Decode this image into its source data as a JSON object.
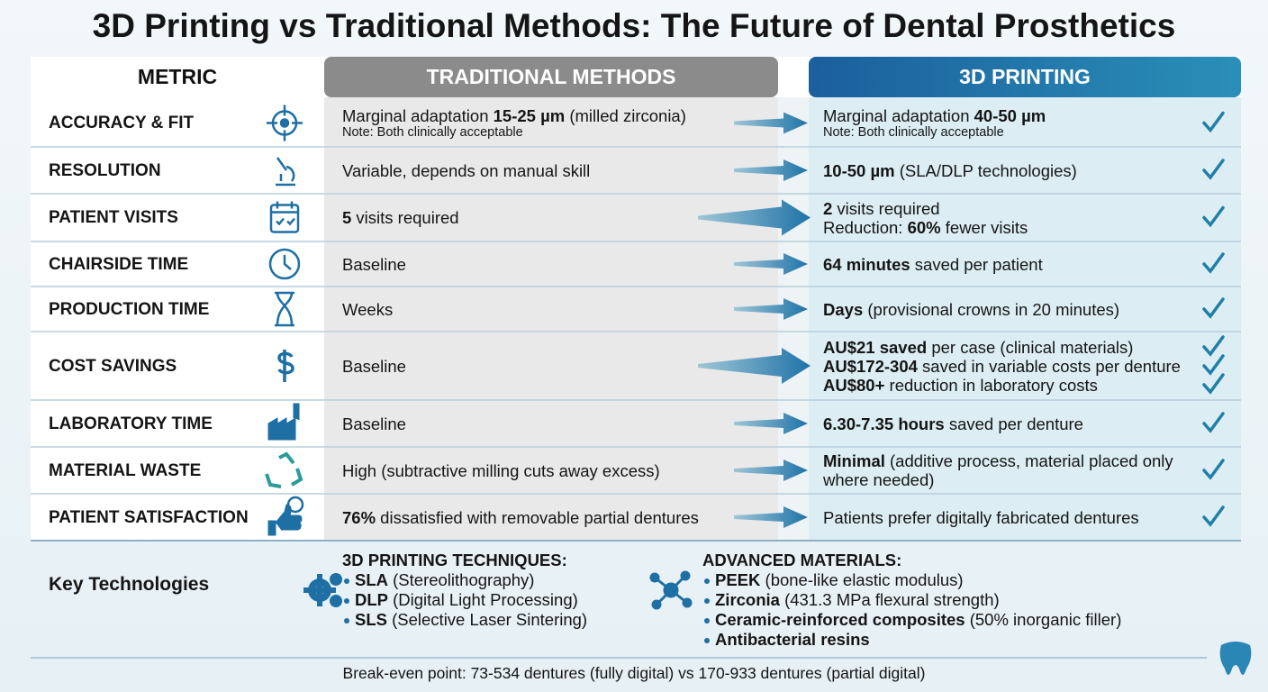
{
  "header": {
    "title": "3D Printing vs Traditional Methods: The Future of Dental Prosthetics"
  },
  "table": {
    "columns": [
      "METRIC",
      "TRADITIONAL METHODS",
      "3D PRINTING"
    ],
    "rows": [
      {
        "metric": "ACCURACY & FIT",
        "traditional": [
          [
            {
              "text": "Marginal adaptation "
            },
            {
              "text": "15-25 µm",
              "bold": true
            },
            {
              "text": " (milled zirconia)"
            }
          ],
          [
            {
              "text": "Note: Both clinically acceptable",
              "small": true
            }
          ]
        ],
        "printing": [
          [
            {
              "text": "Marginal adaptation "
            },
            {
              "text": "40-50 µm",
              "bold": true
            }
          ],
          [
            {
              "text": "Note: Both clinically acceptable",
              "small": true
            }
          ]
        ],
        "checks": 1
      },
      {
        "metric": "RESOLUTION",
        "traditional": [
          [
            {
              "text": "Variable, depends on manual skill"
            }
          ]
        ],
        "printing": [
          [
            {
              "text": "10-50 µm",
              "bold": true
            },
            {
              "text": " (SLA/DLP technologies)"
            }
          ]
        ],
        "checks": 1
      },
      {
        "metric": "PATIENT VISITS",
        "traditional": [
          [
            {
              "text": "5",
              "bold": true
            },
            {
              "text": " visits required"
            }
          ]
        ],
        "printing": [
          [
            {
              "text": "2",
              "bold": true
            },
            {
              "text": " visits required"
            }
          ],
          [
            {
              "text": "Reduction: "
            },
            {
              "text": "60%",
              "bold": true
            },
            {
              "text": " fewer visits"
            }
          ]
        ],
        "checks": 1,
        "highlight": true
      },
      {
        "metric": "CHAIRSIDE TIME",
        "traditional": [
          [
            {
              "text": "Baseline"
            }
          ]
        ],
        "printing": [
          [
            {
              "text": "64 minutes",
              "bold": true
            },
            {
              "text": " saved per patient"
            }
          ]
        ],
        "checks": 1
      },
      {
        "metric": "PRODUCTION TIME",
        "traditional": [
          [
            {
              "text": "Weeks"
            }
          ]
        ],
        "printing": [
          [
            {
              "text": "Days",
              "bold": true
            },
            {
              "text": " (provisional crowns in 20 minutes)"
            }
          ]
        ],
        "checks": 1
      },
      {
        "metric": "COST SAVINGS",
        "traditional": [
          [
            {
              "text": "Baseline"
            }
          ]
        ],
        "printing": [
          [
            {
              "text": "AU$21 saved",
              "bold": true
            },
            {
              "text": " per case (clinical materials)"
            }
          ],
          [
            {
              "text": "AU$172-304",
              "bold": true
            },
            {
              "text": " saved in variable costs per denture"
            }
          ],
          [
            {
              "text": "AU$80+",
              "bold": true
            },
            {
              "text": " reduction in laboratory costs"
            }
          ]
        ],
        "checks": 3,
        "highlight": true
      },
      {
        "metric": "LABORATORY TIME",
        "traditional": [
          [
            {
              "text": "Baseline"
            }
          ]
        ],
        "printing": [
          [
            {
              "text": "6.30-7.35 hours",
              "bold": true
            },
            {
              "text": " saved per denture"
            }
          ]
        ],
        "checks": 1
      },
      {
        "metric": "MATERIAL WASTE",
        "traditional": [
          [
            {
              "text": "High (subtractive milling cuts away excess)"
            }
          ]
        ],
        "printing": [
          [
            {
              "text": "Minimal",
              "bold": true
            },
            {
              "text": " (additive process, material placed only"
            }
          ],
          [
            {
              "text": "where needed)"
            }
          ]
        ],
        "checks": 1
      },
      {
        "metric": "PATIENT SATISFACTION",
        "traditional": [
          [
            {
              "text": "76%",
              "bold": true
            },
            {
              "text": " dissatisfied with removable partial dentures"
            }
          ]
        ],
        "printing": [
          [
            {
              "text": "Patients prefer digitally fabricated dentures"
            }
          ]
        ],
        "checks": 1
      }
    ]
  },
  "key_technologies": {
    "label": "Key Technologies",
    "groups": [
      {
        "heading": "3D PRINTING TECHNIQUES:",
        "items": [
          [
            {
              "text": "SLA",
              "bold": true
            },
            {
              "text": " (Stereolithography)"
            }
          ],
          [
            {
              "text": "DLP",
              "bold": true
            },
            {
              "text": " (Digital Light Processing)"
            }
          ],
          [
            {
              "text": "SLS",
              "bold": true
            },
            {
              "text": " (Selective Laser Sintering)"
            }
          ]
        ]
      },
      {
        "heading": "ADVANCED MATERIALS:",
        "items": [
          [
            {
              "text": "PEEK",
              "bold": true
            },
            {
              "text": " (bone-like elastic modulus)"
            }
          ],
          [
            {
              "text": "Zirconia",
              "bold": true
            },
            {
              "text": " (431.3 MPa flexural strength)"
            }
          ],
          [
            {
              "text": "Ceramic-reinforced composites",
              "bold": true
            },
            {
              "text": " (50% inorganic filler)"
            }
          ],
          [
            {
              "text": "Antibacterial resins",
              "bold": true
            }
          ]
        ]
      }
    ]
  },
  "footer": {
    "text": "Break-even point: 73-534 dentures (fully digital) vs 170-933 dentures (partial digital)"
  }
}
